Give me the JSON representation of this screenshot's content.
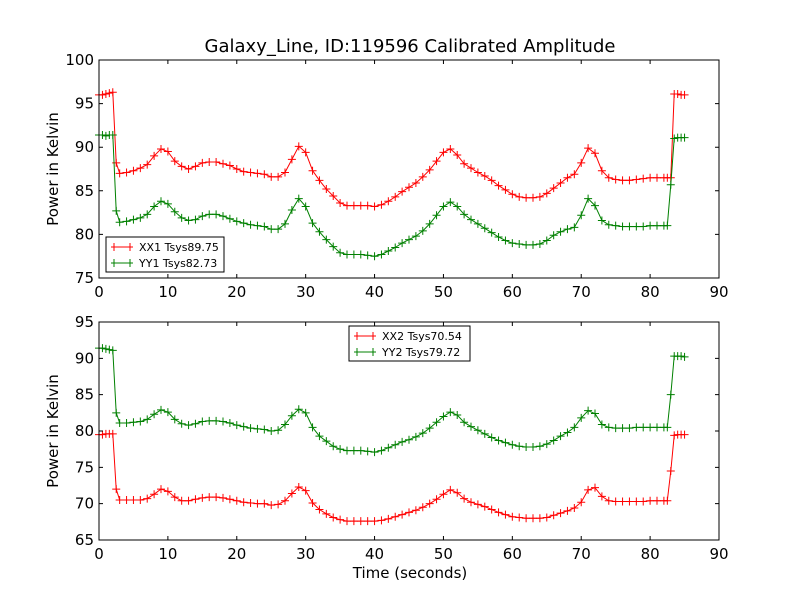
{
  "figure": {
    "title": "Galaxy_Line, ID:119596 Calibrated Amplitude",
    "x_label": "Time (seconds)"
  },
  "chart_data": [
    {
      "type": "line",
      "title": "Galaxy_Line, ID:119596 Calibrated Amplitude",
      "xlabel": "",
      "ylabel": "Power in Kelvin",
      "xlim": [
        0,
        90
      ],
      "ylim": [
        75,
        100
      ],
      "xticks": [
        0,
        10,
        20,
        30,
        40,
        50,
        60,
        70,
        80,
        90
      ],
      "yticks": [
        75,
        80,
        85,
        90,
        95,
        100
      ],
      "grid": false,
      "legend_position": "lower-left",
      "marker": "+",
      "series": [
        {
          "name": "XX1 Tsys89.75",
          "color": "#ff0000",
          "x": [
            0,
            0.5,
            1,
            1.5,
            2,
            2.5,
            3,
            4,
            5,
            6,
            7,
            8,
            9,
            10,
            11,
            12,
            13,
            14,
            15,
            16,
            17,
            18,
            19,
            20,
            21,
            22,
            23,
            24,
            25,
            26,
            27,
            28,
            29,
            30,
            31,
            32,
            33,
            34,
            35,
            36,
            37,
            38,
            39,
            40,
            41,
            42,
            43,
            44,
            45,
            46,
            47,
            48,
            49,
            50,
            51,
            52,
            53,
            54,
            55,
            56,
            57,
            58,
            59,
            60,
            61,
            62,
            63,
            64,
            65,
            66,
            67,
            68,
            69,
            70,
            71,
            72,
            73,
            74,
            75,
            76,
            77,
            78,
            79,
            80,
            81,
            82,
            82.5,
            83,
            83.5,
            84,
            84.5,
            85
          ],
          "values": [
            96,
            96,
            96.1,
            96.2,
            96.3,
            88.2,
            87,
            87.1,
            87.3,
            87.6,
            88,
            89,
            89.8,
            89.5,
            88.4,
            87.8,
            87.5,
            87.8,
            88.2,
            88.3,
            88.3,
            88.1,
            87.9,
            87.5,
            87.2,
            87.1,
            87,
            86.9,
            86.6,
            86.6,
            87.1,
            88.6,
            90.1,
            89.4,
            87.3,
            86.2,
            85.2,
            84.4,
            83.6,
            83.3,
            83.3,
            83.3,
            83.3,
            83.2,
            83.4,
            83.8,
            84.3,
            84.9,
            85.4,
            85.9,
            86.6,
            87.4,
            88.4,
            89.4,
            89.8,
            89.1,
            88.1,
            87.6,
            87.1,
            86.7,
            86.2,
            85.6,
            85.1,
            84.6,
            84.3,
            84.2,
            84.2,
            84.3,
            84.7,
            85.3,
            85.9,
            86.5,
            86.9,
            88.2,
            89.9,
            89.3,
            87.3,
            86.5,
            86.3,
            86.2,
            86.2,
            86.3,
            86.4,
            86.5,
            86.5,
            86.5,
            86.5,
            86.5,
            96.1,
            96.1,
            96,
            96
          ]
        },
        {
          "name": "YY1 Tsys82.73",
          "color": "#008000",
          "x": [
            0,
            0.5,
            1,
            1.5,
            2,
            2.5,
            3,
            4,
            5,
            6,
            7,
            8,
            9,
            10,
            11,
            12,
            13,
            14,
            15,
            16,
            17,
            18,
            19,
            20,
            21,
            22,
            23,
            24,
            25,
            26,
            27,
            28,
            29,
            30,
            31,
            32,
            33,
            34,
            35,
            36,
            37,
            38,
            39,
            40,
            41,
            42,
            43,
            44,
            45,
            46,
            47,
            48,
            49,
            50,
            51,
            52,
            53,
            54,
            55,
            56,
            57,
            58,
            59,
            60,
            61,
            62,
            63,
            64,
            65,
            66,
            67,
            68,
            69,
            70,
            71,
            72,
            73,
            74,
            75,
            76,
            77,
            78,
            79,
            80,
            81,
            82,
            82.5,
            83,
            83.5,
            84,
            84.5,
            85
          ],
          "values": [
            91.4,
            91.4,
            91.3,
            91.4,
            91.4,
            82.7,
            81.4,
            81.5,
            81.7,
            81.9,
            82.3,
            83.2,
            83.8,
            83.5,
            82.6,
            81.9,
            81.6,
            81.7,
            82.1,
            82.3,
            82.3,
            82.1,
            81.8,
            81.5,
            81.3,
            81.1,
            81,
            80.9,
            80.6,
            80.6,
            81.2,
            82.8,
            84.1,
            83.2,
            81.3,
            80.3,
            79.4,
            78.6,
            77.9,
            77.7,
            77.7,
            77.7,
            77.6,
            77.5,
            77.7,
            78.1,
            78.5,
            79,
            79.4,
            79.8,
            80.4,
            81.2,
            82.2,
            83.2,
            83.7,
            83.2,
            82.3,
            81.7,
            81.2,
            80.7,
            80.2,
            79.7,
            79.3,
            79,
            78.9,
            78.8,
            78.8,
            78.9,
            79.3,
            79.9,
            80.3,
            80.6,
            80.8,
            82.2,
            84.1,
            83.3,
            81.6,
            81.1,
            81,
            80.9,
            80.9,
            80.9,
            80.9,
            81,
            81,
            81,
            81,
            85.7,
            91,
            91.1,
            91.1,
            91.1
          ]
        }
      ]
    },
    {
      "type": "line",
      "title": "",
      "xlabel": "Time (seconds)",
      "ylabel": "Power in Kelvin",
      "xlim": [
        0,
        90
      ],
      "ylim": [
        65,
        95
      ],
      "xticks": [
        0,
        10,
        20,
        30,
        40,
        50,
        60,
        70,
        80,
        90
      ],
      "yticks": [
        65,
        70,
        75,
        80,
        85,
        90,
        95
      ],
      "grid": false,
      "legend_position": "top-center",
      "marker": "+",
      "series": [
        {
          "name": "XX2 Tsys70.54",
          "color": "#ff0000",
          "x": [
            0,
            0.5,
            1,
            1.5,
            2,
            2.5,
            3,
            4,
            5,
            6,
            7,
            8,
            9,
            10,
            11,
            12,
            13,
            14,
            15,
            16,
            17,
            18,
            19,
            20,
            21,
            22,
            23,
            24,
            25,
            26,
            27,
            28,
            29,
            30,
            31,
            32,
            33,
            34,
            35,
            36,
            37,
            38,
            39,
            40,
            41,
            42,
            43,
            44,
            45,
            46,
            47,
            48,
            49,
            50,
            51,
            52,
            53,
            54,
            55,
            56,
            57,
            58,
            59,
            60,
            61,
            62,
            63,
            64,
            65,
            66,
            67,
            68,
            69,
            70,
            71,
            72,
            73,
            74,
            75,
            76,
            77,
            78,
            79,
            80,
            81,
            82,
            82.5,
            83,
            83.5,
            84,
            84.5,
            85
          ],
          "values": [
            79.5,
            79.5,
            79.6,
            79.6,
            79.6,
            72,
            70.5,
            70.5,
            70.5,
            70.5,
            70.7,
            71.3,
            72,
            71.7,
            70.9,
            70.4,
            70.4,
            70.6,
            70.8,
            70.9,
            70.9,
            70.8,
            70.6,
            70.4,
            70.2,
            70.1,
            70,
            70,
            69.8,
            69.9,
            70.4,
            71.4,
            72.3,
            71.8,
            70.1,
            69.2,
            68.6,
            68.1,
            67.8,
            67.6,
            67.6,
            67.6,
            67.6,
            67.6,
            67.7,
            67.9,
            68.2,
            68.5,
            68.8,
            69.1,
            69.5,
            70,
            70.6,
            71.3,
            71.9,
            71.5,
            70.7,
            70.2,
            69.9,
            69.6,
            69.2,
            68.8,
            68.5,
            68.2,
            68.1,
            68,
            68,
            68,
            68.1,
            68.4,
            68.7,
            69,
            69.4,
            70.2,
            71.9,
            72.2,
            71,
            70.4,
            70.3,
            70.3,
            70.3,
            70.3,
            70.3,
            70.4,
            70.4,
            70.4,
            70.4,
            74.5,
            79.4,
            79.5,
            79.5,
            79.5
          ]
        },
        {
          "name": "YY2 Tsys79.72",
          "color": "#008000",
          "x": [
            0,
            0.5,
            1,
            1.5,
            2,
            2.5,
            3,
            4,
            5,
            6,
            7,
            8,
            9,
            10,
            11,
            12,
            13,
            14,
            15,
            16,
            17,
            18,
            19,
            20,
            21,
            22,
            23,
            24,
            25,
            26,
            27,
            28,
            29,
            30,
            31,
            32,
            33,
            34,
            35,
            36,
            37,
            38,
            39,
            40,
            41,
            42,
            43,
            44,
            45,
            46,
            47,
            48,
            49,
            50,
            51,
            52,
            53,
            54,
            55,
            56,
            57,
            58,
            59,
            60,
            61,
            62,
            63,
            64,
            65,
            66,
            67,
            68,
            69,
            70,
            71,
            72,
            73,
            74,
            75,
            76,
            77,
            78,
            79,
            80,
            81,
            82,
            82.5,
            83,
            83.5,
            84,
            84.5,
            85
          ],
          "values": [
            91.4,
            91.4,
            91.3,
            91.2,
            91.1,
            82.5,
            81.1,
            81.1,
            81.2,
            81.3,
            81.6,
            82.3,
            82.9,
            82.6,
            81.6,
            81,
            80.8,
            81,
            81.3,
            81.4,
            81.4,
            81.3,
            81.1,
            80.8,
            80.6,
            80.4,
            80.3,
            80.2,
            80,
            80.1,
            80.9,
            82.1,
            83,
            82.5,
            80.5,
            79.3,
            78.6,
            77.9,
            77.5,
            77.3,
            77.3,
            77.3,
            77.2,
            77.1,
            77.3,
            77.7,
            78.1,
            78.5,
            78.8,
            79.2,
            79.7,
            80.4,
            81.2,
            82,
            82.6,
            82.2,
            81.2,
            80.6,
            80.1,
            79.6,
            79.1,
            78.7,
            78.4,
            78.1,
            77.9,
            77.8,
            77.8,
            77.9,
            78.2,
            78.7,
            79.3,
            79.8,
            80.5,
            81.8,
            82.8,
            82.4,
            80.9,
            80.5,
            80.4,
            80.4,
            80.4,
            80.5,
            80.5,
            80.5,
            80.5,
            80.5,
            80.5,
            85,
            90.3,
            90.3,
            90.3,
            90.2
          ]
        }
      ]
    }
  ]
}
